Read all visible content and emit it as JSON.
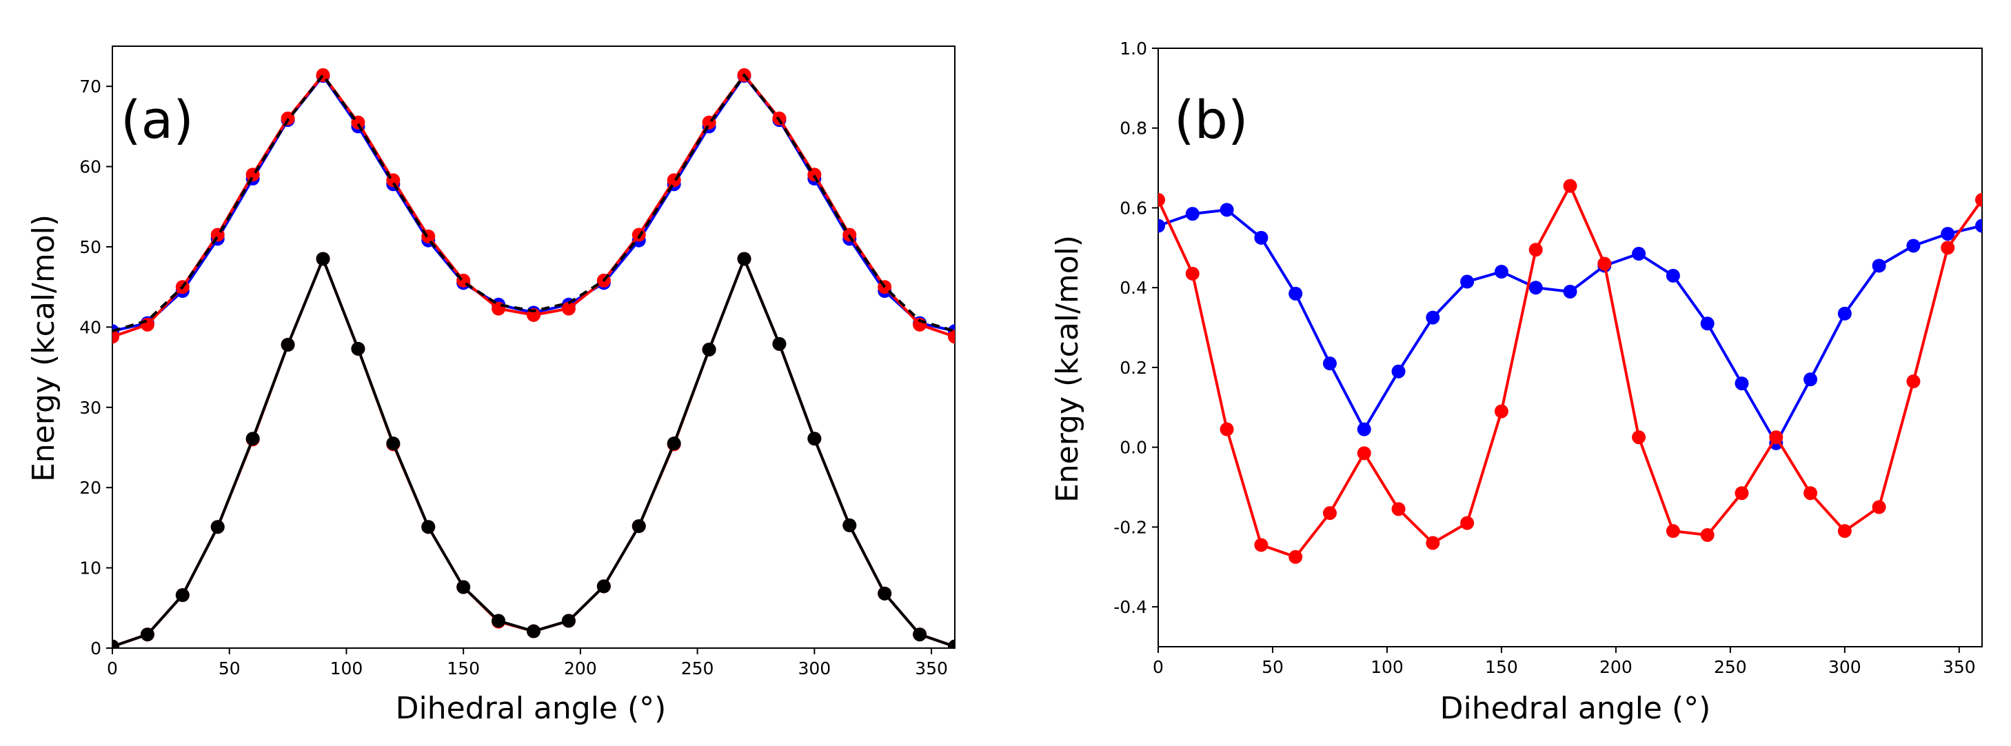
{
  "chart_data": [
    {
      "type": "line",
      "panel_label": "(a)",
      "xlabel": "Dihedral angle (°)",
      "ylabel": "Energy (kcal/mol)",
      "xlim": [
        0,
        360
      ],
      "ylim": [
        0,
        75
      ],
      "xticks": [
        0,
        50,
        100,
        150,
        200,
        250,
        300,
        350
      ],
      "yticks": [
        0,
        10,
        20,
        30,
        40,
        50,
        60,
        70
      ],
      "x": [
        0,
        15,
        30,
        45,
        60,
        75,
        90,
        105,
        120,
        135,
        150,
        165,
        180,
        195,
        210,
        225,
        240,
        255,
        270,
        285,
        300,
        315,
        330,
        345,
        360
      ],
      "series": [
        {
          "name": "upper-blue",
          "color": "#0000ff",
          "line": "solid",
          "values": [
            39.5,
            40.5,
            44.5,
            51.0,
            58.5,
            65.8,
            71.3,
            65.0,
            57.8,
            50.8,
            45.5,
            42.8,
            41.8,
            42.8,
            45.5,
            50.8,
            57.8,
            65.0,
            71.3,
            65.8,
            58.5,
            51.0,
            44.5,
            40.5,
            39.5
          ]
        },
        {
          "name": "upper-red",
          "color": "#ff0000",
          "line": "solid",
          "values": [
            38.8,
            40.3,
            45.0,
            51.5,
            59.0,
            66.0,
            71.4,
            65.5,
            58.3,
            51.3,
            45.8,
            42.3,
            41.5,
            42.3,
            45.8,
            51.5,
            58.3,
            65.5,
            71.4,
            66.0,
            59.0,
            51.5,
            45.0,
            40.3,
            38.8
          ]
        },
        {
          "name": "upper-black-dashed",
          "color": "#000000",
          "line": "dashed",
          "values": [
            39.5,
            40.8,
            45.0,
            51.3,
            58.8,
            65.8,
            71.4,
            65.3,
            58.0,
            51.0,
            45.6,
            42.8,
            42.0,
            43.0,
            45.8,
            51.2,
            58.0,
            65.3,
            71.4,
            65.8,
            58.8,
            51.3,
            45.0,
            40.8,
            39.5
          ]
        },
        {
          "name": "lower-red",
          "color": "#ff0000",
          "line": "solid",
          "values": [
            0.2,
            1.7,
            6.6,
            15.1,
            26.0,
            37.8,
            48.5,
            37.3,
            25.4,
            15.1,
            7.6,
            3.3,
            2.1,
            3.4,
            7.7,
            15.2,
            25.4,
            37.2,
            48.5,
            37.9,
            26.1,
            15.3,
            6.8,
            1.7,
            0.2
          ]
        },
        {
          "name": "lower-black",
          "color": "#000000",
          "line": "solid",
          "values": [
            0.2,
            1.7,
            6.6,
            15.1,
            26.1,
            37.8,
            48.5,
            37.3,
            25.5,
            15.1,
            7.6,
            3.4,
            2.1,
            3.4,
            7.7,
            15.2,
            25.5,
            37.2,
            48.5,
            37.9,
            26.1,
            15.3,
            6.8,
            1.7,
            0.2
          ]
        }
      ]
    },
    {
      "type": "line",
      "panel_label": "(b)",
      "xlabel": "Dihedral angle (°)",
      "ylabel": "Energy (kcal/mol)",
      "xlim": [
        0,
        360
      ],
      "ylim": [
        -0.5,
        1.0
      ],
      "xticks": [
        0,
        50,
        100,
        150,
        200,
        250,
        300,
        350
      ],
      "yticks": [
        -0.4,
        -0.2,
        0.0,
        0.2,
        0.4,
        0.6,
        0.8,
        1.0
      ],
      "ytick_labels": [
        "-0.4",
        "-0.2",
        "0.0",
        "0.2",
        "0.4",
        "0.6",
        "0.8",
        "1.0"
      ],
      "x": [
        0,
        15,
        30,
        45,
        60,
        75,
        90,
        105,
        120,
        135,
        150,
        165,
        180,
        195,
        210,
        225,
        240,
        255,
        270,
        285,
        300,
        315,
        330,
        345,
        360
      ],
      "series": [
        {
          "name": "blue",
          "color": "#0000ff",
          "line": "solid",
          "values": [
            0.555,
            0.585,
            0.595,
            0.525,
            0.385,
            0.21,
            0.045,
            0.19,
            0.325,
            0.415,
            0.44,
            0.4,
            0.39,
            0.455,
            0.485,
            0.43,
            0.31,
            0.16,
            0.01,
            0.17,
            0.335,
            0.455,
            0.505,
            0.535,
            0.555
          ]
        },
        {
          "name": "red",
          "color": "#ff0000",
          "line": "solid",
          "values": [
            0.62,
            0.435,
            0.045,
            -0.245,
            -0.275,
            -0.165,
            -0.015,
            -0.155,
            -0.24,
            -0.19,
            0.09,
            0.495,
            0.655,
            0.46,
            0.025,
            -0.21,
            -0.22,
            -0.115,
            0.025,
            -0.115,
            -0.21,
            -0.15,
            0.165,
            0.5,
            0.62
          ]
        }
      ]
    }
  ]
}
